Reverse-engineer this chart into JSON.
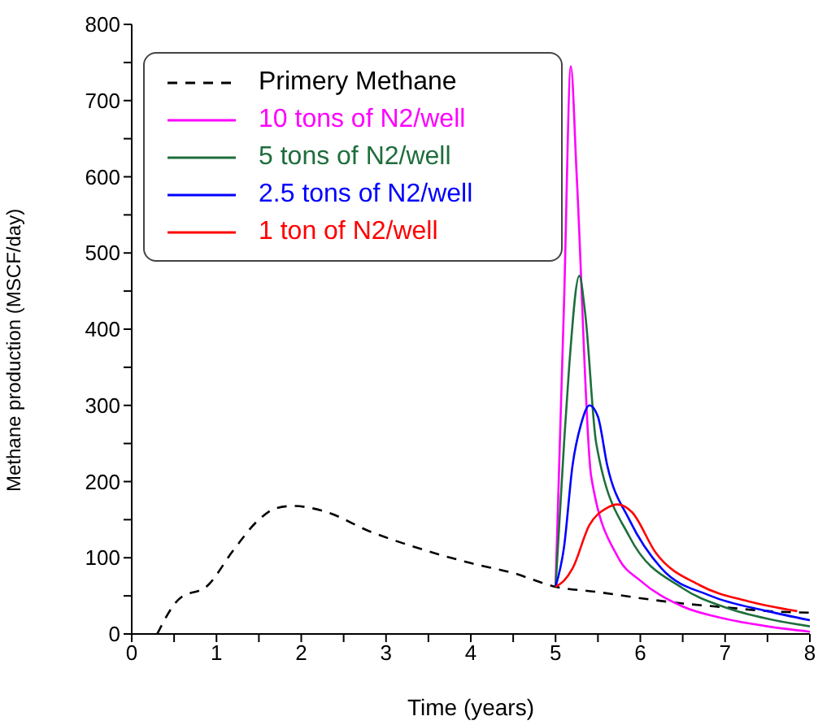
{
  "chart_data": {
    "type": "line",
    "xlabel": "Time (years)",
    "ylabel": "Methane production (MSCF/day)",
    "xlim": [
      0,
      8
    ],
    "xticks": [
      0,
      1,
      2,
      3,
      4,
      5,
      6,
      7,
      8
    ],
    "ylim": [
      0,
      800
    ],
    "yticks": [
      0,
      100,
      200,
      300,
      400,
      500,
      600,
      700,
      800
    ],
    "legend": "top left",
    "marker": "none",
    "series": [
      {
        "name": "Primery Methane",
        "color": "#000000",
        "line_style": "dashed",
        "x": [
          0.3,
          0.55,
          0.9,
          1.2,
          1.5,
          1.7,
          1.9,
          2.3,
          2.8,
          3.4,
          4.0,
          4.5,
          5.0,
          5.5,
          6.0,
          6.5,
          7.0,
          7.5,
          8.0
        ],
        "values": [
          0,
          45,
          64,
          110,
          150,
          165,
          168,
          160,
          135,
          112,
          93,
          80,
          62,
          55,
          47,
          40,
          35,
          30,
          28
        ]
      },
      {
        "name": "10 tons of N2/well",
        "color": "#ff00ff",
        "line_style": "solid",
        "x": [
          5.0,
          5.1,
          5.18,
          5.25,
          5.42,
          5.74,
          6.0,
          6.5,
          7.0,
          7.5,
          8.0
        ],
        "values": [
          62,
          435,
          745,
          600,
          207,
          100,
          70,
          36,
          20,
          10,
          3
        ]
      },
      {
        "name": "5 tons of N2/well",
        "color": "#1e6e3c",
        "line_style": "solid",
        "x": [
          5.0,
          5.1,
          5.16,
          5.28,
          5.35,
          5.48,
          5.87,
          6.5,
          7.0,
          7.5,
          8.0
        ],
        "values": [
          62,
          250,
          350,
          470,
          420,
          250,
          128,
          60,
          35,
          20,
          10
        ]
      },
      {
        "name": "2.5 tons of N2/well",
        "color": "#0000ff",
        "line_style": "solid",
        "x": [
          5.0,
          5.1,
          5.2,
          5.3,
          5.4,
          5.5,
          5.61,
          5.87,
          6.25,
          6.83,
          7.5,
          8.0
        ],
        "values": [
          62,
          114,
          221,
          275,
          300,
          285,
          221,
          150,
          86,
          50,
          30,
          18
        ]
      },
      {
        "name": "1 ton of N2/well",
        "color": "#ff0000",
        "line_style": "solid",
        "x": [
          5.0,
          5.1,
          5.2,
          5.4,
          5.6,
          5.73,
          5.9,
          6.18,
          6.7,
          7.27,
          7.85
        ],
        "values": [
          62,
          70,
          86,
          143,
          165,
          170,
          160,
          107,
          64,
          43,
          30
        ]
      }
    ]
  }
}
